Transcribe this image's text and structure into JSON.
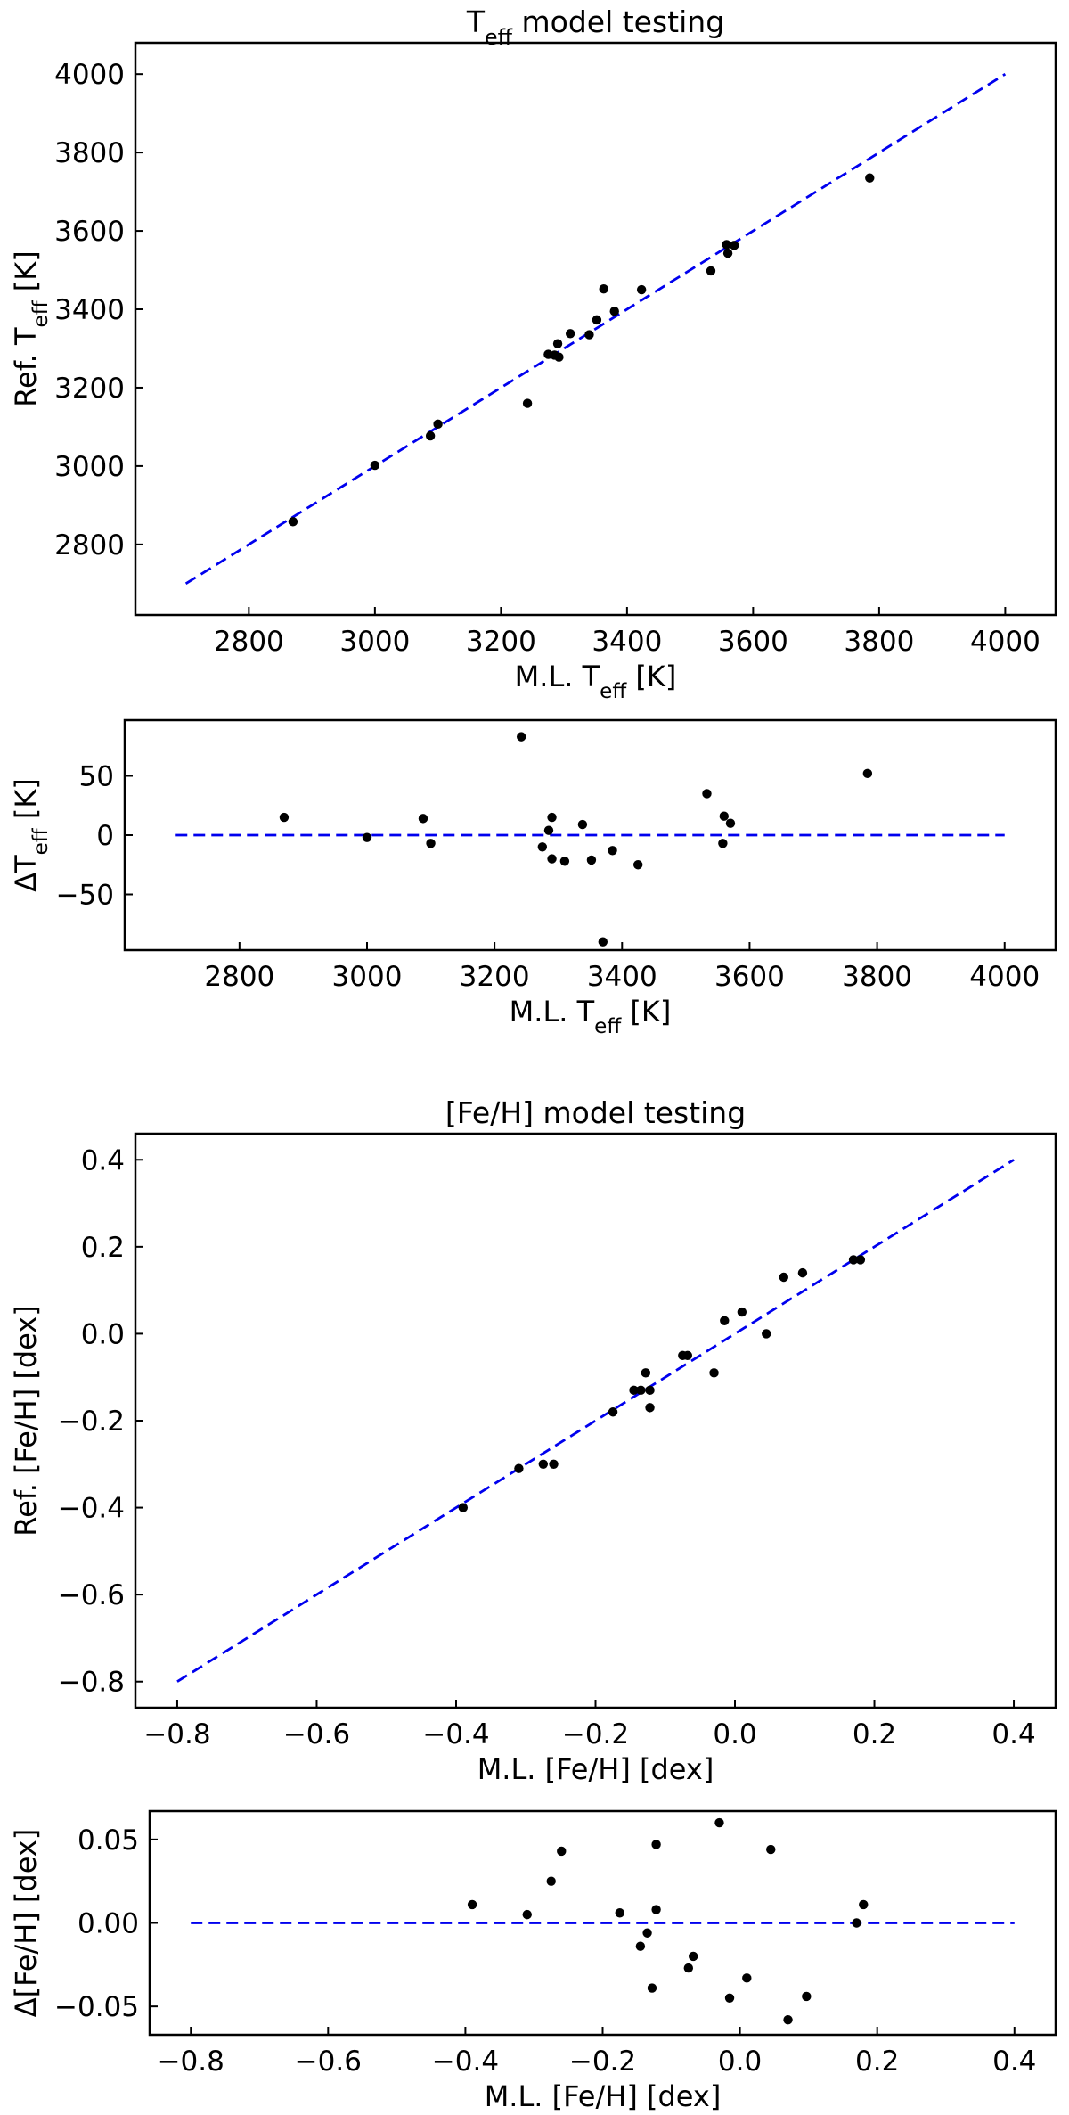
{
  "chart_data": [
    {
      "id": "teff_main",
      "type": "scatter",
      "title": [
        "T",
        "eff",
        " model testing"
      ],
      "xlabel": [
        "M.L. T",
        "eff",
        " [K]"
      ],
      "ylabel": [
        "Ref. T",
        "eff",
        " [K]"
      ],
      "xlim": [
        2620,
        4080
      ],
      "ylim": [
        2620,
        4080
      ],
      "xticks": [
        2800,
        3000,
        3200,
        3400,
        3600,
        3800,
        4000
      ],
      "yticks": [
        2800,
        3000,
        3200,
        3400,
        3600,
        3800,
        4000
      ],
      "xtick_labels": [
        "2800",
        "3000",
        "3200",
        "3400",
        "3600",
        "3800",
        "4000"
      ],
      "ytick_labels": [
        "2800",
        "3000",
        "3200",
        "3400",
        "3600",
        "3800",
        "4000"
      ],
      "reference_line": {
        "x": [
          2700,
          4000
        ],
        "y": [
          2700,
          4000
        ],
        "style": "dashed",
        "color": "#0000ee"
      },
      "marker_color": "#000000",
      "points": [
        [
          2870,
          2858
        ],
        [
          3000,
          3002
        ],
        [
          3088,
          3077
        ],
        [
          3100,
          3107
        ],
        [
          3242,
          3160
        ],
        [
          3275,
          3285
        ],
        [
          3285,
          3283
        ],
        [
          3290,
          3312
        ],
        [
          3292,
          3278
        ],
        [
          3310,
          3338
        ],
        [
          3340,
          3335
        ],
        [
          3352,
          3373
        ],
        [
          3363,
          3452
        ],
        [
          3380,
          3395
        ],
        [
          3423,
          3450
        ],
        [
          3533,
          3498
        ],
        [
          3558,
          3565
        ],
        [
          3560,
          3543
        ],
        [
          3570,
          3563
        ],
        [
          3785,
          3735
        ]
      ]
    },
    {
      "id": "teff_residual",
      "type": "scatter",
      "title": [],
      "xlabel": [
        "M.L. T",
        "eff",
        " [K]"
      ],
      "ylabel": [
        "ΔT",
        "eff",
        " [K]"
      ],
      "xlim": [
        2620,
        4080
      ],
      "ylim": [
        -97,
        97
      ],
      "xticks": [
        2800,
        3000,
        3200,
        3400,
        3600,
        3800,
        4000
      ],
      "yticks": [
        -50,
        0,
        50
      ],
      "xtick_labels": [
        "2800",
        "3000",
        "3200",
        "3400",
        "3600",
        "3800",
        "4000"
      ],
      "ytick_labels": [
        "−50",
        "0",
        "50"
      ],
      "reference_line": {
        "x": [
          2700,
          4000
        ],
        "y": [
          0,
          0
        ],
        "style": "dashed",
        "color": "#0000ee"
      },
      "marker_color": "#000000",
      "points": [
        [
          2870,
          15
        ],
        [
          3000,
          -2
        ],
        [
          3088,
          14
        ],
        [
          3100,
          -7
        ],
        [
          3242,
          83
        ],
        [
          3275,
          -10
        ],
        [
          3285,
          4
        ],
        [
          3290,
          15
        ],
        [
          3290,
          -20
        ],
        [
          3310,
          -22
        ],
        [
          3338,
          9
        ],
        [
          3352,
          -21
        ],
        [
          3370,
          -90
        ],
        [
          3385,
          -13
        ],
        [
          3425,
          -25
        ],
        [
          3533,
          35
        ],
        [
          3558,
          -7
        ],
        [
          3560,
          16
        ],
        [
          3570,
          10
        ],
        [
          3785,
          52
        ]
      ]
    },
    {
      "id": "feh_main",
      "type": "scatter",
      "title": [
        "[Fe/H] model testing"
      ],
      "xlabel": [
        "M.L. [Fe/H] [dex]"
      ],
      "ylabel": [
        "Ref. [Fe/H] [dex]"
      ],
      "xlim": [
        -0.86,
        0.46
      ],
      "ylim": [
        -0.86,
        0.46
      ],
      "xticks": [
        -0.8,
        -0.6,
        -0.4,
        -0.2,
        0.0,
        0.2,
        0.4
      ],
      "yticks": [
        -0.8,
        -0.6,
        -0.4,
        -0.2,
        0.0,
        0.2,
        0.4
      ],
      "xtick_labels": [
        "−0.8",
        "−0.6",
        "−0.4",
        "−0.2",
        "0.0",
        "0.2",
        "0.4"
      ],
      "ytick_labels": [
        "−0.8",
        "−0.6",
        "−0.4",
        "−0.2",
        "0.0",
        "0.2",
        "0.4"
      ],
      "reference_line": {
        "x": [
          -0.8,
          0.4
        ],
        "y": [
          -0.8,
          0.4
        ],
        "style": "dashed",
        "color": "#0000ee"
      },
      "marker_color": "#000000",
      "points": [
        [
          -0.39,
          -0.4
        ],
        [
          -0.31,
          -0.31
        ],
        [
          -0.275,
          -0.3
        ],
        [
          -0.26,
          -0.3
        ],
        [
          -0.175,
          -0.18
        ],
        [
          -0.145,
          -0.13
        ],
        [
          -0.135,
          -0.13
        ],
        [
          -0.128,
          -0.09
        ],
        [
          -0.122,
          -0.13
        ],
        [
          -0.122,
          -0.17
        ],
        [
          -0.075,
          -0.05
        ],
        [
          -0.068,
          -0.05
        ],
        [
          -0.03,
          -0.09
        ],
        [
          -0.015,
          0.03
        ],
        [
          0.01,
          0.05
        ],
        [
          0.045,
          0.0
        ],
        [
          0.07,
          0.13
        ],
        [
          0.097,
          0.14
        ],
        [
          0.17,
          0.17
        ],
        [
          0.18,
          0.17
        ]
      ]
    },
    {
      "id": "feh_residual",
      "type": "scatter",
      "title": [],
      "xlabel": [
        "M.L. [Fe/H] [dex]"
      ],
      "ylabel": [
        "Δ[Fe/H] [dex]"
      ],
      "xlim": [
        -0.86,
        0.46
      ],
      "ylim": [
        -0.067,
        0.067
      ],
      "xticks": [
        -0.8,
        -0.6,
        -0.4,
        -0.2,
        0.0,
        0.2,
        0.4
      ],
      "yticks": [
        -0.05,
        0.0,
        0.05
      ],
      "xtick_labels": [
        "−0.8",
        "−0.6",
        "−0.4",
        "−0.2",
        "0.0",
        "0.2",
        "0.4"
      ],
      "ytick_labels": [
        "−0.05",
        "0.00",
        "0.05"
      ],
      "reference_line": {
        "x": [
          -0.8,
          0.4
        ],
        "y": [
          0,
          0
        ],
        "style": "dashed",
        "color": "#0000ee"
      },
      "marker_color": "#000000",
      "points": [
        [
          -0.39,
          0.011
        ],
        [
          -0.31,
          0.005
        ],
        [
          -0.275,
          0.025
        ],
        [
          -0.26,
          0.043
        ],
        [
          -0.175,
          0.006
        ],
        [
          -0.145,
          -0.014
        ],
        [
          -0.135,
          -0.006
        ],
        [
          -0.128,
          -0.039
        ],
        [
          -0.122,
          0.047
        ],
        [
          -0.122,
          0.008
        ],
        [
          -0.075,
          -0.027
        ],
        [
          -0.068,
          -0.02
        ],
        [
          -0.03,
          0.06
        ],
        [
          -0.015,
          -0.045
        ],
        [
          0.01,
          -0.033
        ],
        [
          0.045,
          0.044
        ],
        [
          0.07,
          -0.058
        ],
        [
          0.097,
          -0.044
        ],
        [
          0.17,
          0.0
        ],
        [
          0.18,
          0.011
        ]
      ]
    }
  ]
}
